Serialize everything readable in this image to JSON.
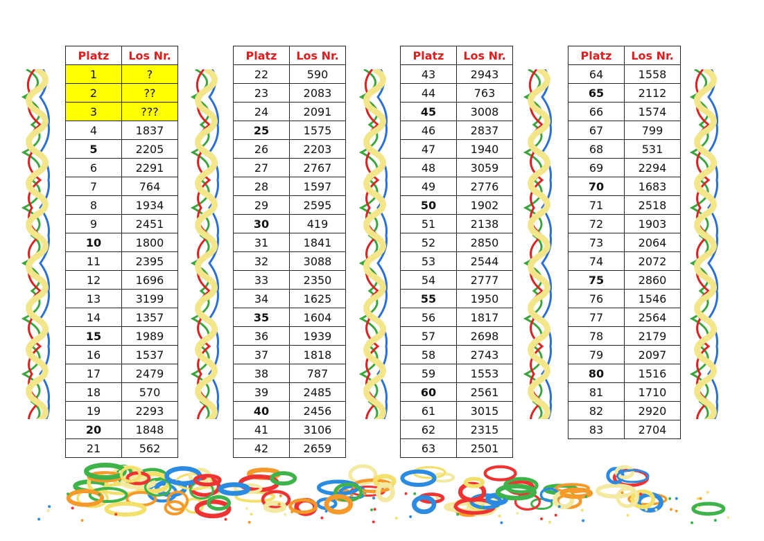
{
  "headers": {
    "platz": "Platz",
    "los": "Los Nr."
  },
  "colors": {
    "header_text": "#e21b1b",
    "highlight": "#ffff00"
  },
  "tables": [
    [
      [
        "1",
        "?"
      ],
      [
        "2",
        "??"
      ],
      [
        "3",
        "???"
      ],
      [
        "4",
        "1837"
      ],
      [
        "5",
        "2205"
      ],
      [
        "6",
        "2291"
      ],
      [
        "7",
        "764"
      ],
      [
        "8",
        "1934"
      ],
      [
        "9",
        "2451"
      ],
      [
        "10",
        "1800"
      ],
      [
        "11",
        "2395"
      ],
      [
        "12",
        "1696"
      ],
      [
        "13",
        "3199"
      ],
      [
        "14",
        "1357"
      ],
      [
        "15",
        "1989"
      ],
      [
        "16",
        "1537"
      ],
      [
        "17",
        "2479"
      ],
      [
        "18",
        "570"
      ],
      [
        "19",
        "2293"
      ],
      [
        "20",
        "1848"
      ],
      [
        "21",
        "562"
      ]
    ],
    [
      [
        "22",
        "590"
      ],
      [
        "23",
        "2083"
      ],
      [
        "24",
        "2091"
      ],
      [
        "25",
        "1575"
      ],
      [
        "26",
        "2203"
      ],
      [
        "27",
        "2767"
      ],
      [
        "28",
        "1597"
      ],
      [
        "29",
        "2595"
      ],
      [
        "30",
        "419"
      ],
      [
        "31",
        "1841"
      ],
      [
        "32",
        "3088"
      ],
      [
        "33",
        "2350"
      ],
      [
        "34",
        "1625"
      ],
      [
        "35",
        "1604"
      ],
      [
        "36",
        "1939"
      ],
      [
        "37",
        "1818"
      ],
      [
        "38",
        "787"
      ],
      [
        "39",
        "2485"
      ],
      [
        "40",
        "2456"
      ],
      [
        "41",
        "3106"
      ],
      [
        "42",
        "2659"
      ]
    ],
    [
      [
        "43",
        "2943"
      ],
      [
        "44",
        "763"
      ],
      [
        "45",
        "3008"
      ],
      [
        "46",
        "2837"
      ],
      [
        "47",
        "1940"
      ],
      [
        "48",
        "3059"
      ],
      [
        "49",
        "2776"
      ],
      [
        "50",
        "1902"
      ],
      [
        "51",
        "2138"
      ],
      [
        "52",
        "2850"
      ],
      [
        "53",
        "2544"
      ],
      [
        "54",
        "2777"
      ],
      [
        "55",
        "1950"
      ],
      [
        "56",
        "1817"
      ],
      [
        "57",
        "2698"
      ],
      [
        "58",
        "2743"
      ],
      [
        "59",
        "1553"
      ],
      [
        "60",
        "2561"
      ],
      [
        "61",
        "3015"
      ],
      [
        "62",
        "2315"
      ],
      [
        "63",
        "2501"
      ]
    ],
    [
      [
        "64",
        "1558"
      ],
      [
        "65",
        "2112"
      ],
      [
        "66",
        "1574"
      ],
      [
        "67",
        "799"
      ],
      [
        "68",
        "531"
      ],
      [
        "69",
        "2294"
      ],
      [
        "70",
        "1683"
      ],
      [
        "71",
        "2518"
      ],
      [
        "72",
        "1903"
      ],
      [
        "73",
        "2064"
      ],
      [
        "74",
        "2072"
      ],
      [
        "75",
        "2860"
      ],
      [
        "76",
        "1546"
      ],
      [
        "77",
        "2564"
      ],
      [
        "78",
        "2179"
      ],
      [
        "79",
        "2097"
      ],
      [
        "80",
        "1516"
      ],
      [
        "81",
        "1710"
      ],
      [
        "82",
        "2920"
      ],
      [
        "83",
        "2704"
      ]
    ]
  ]
}
